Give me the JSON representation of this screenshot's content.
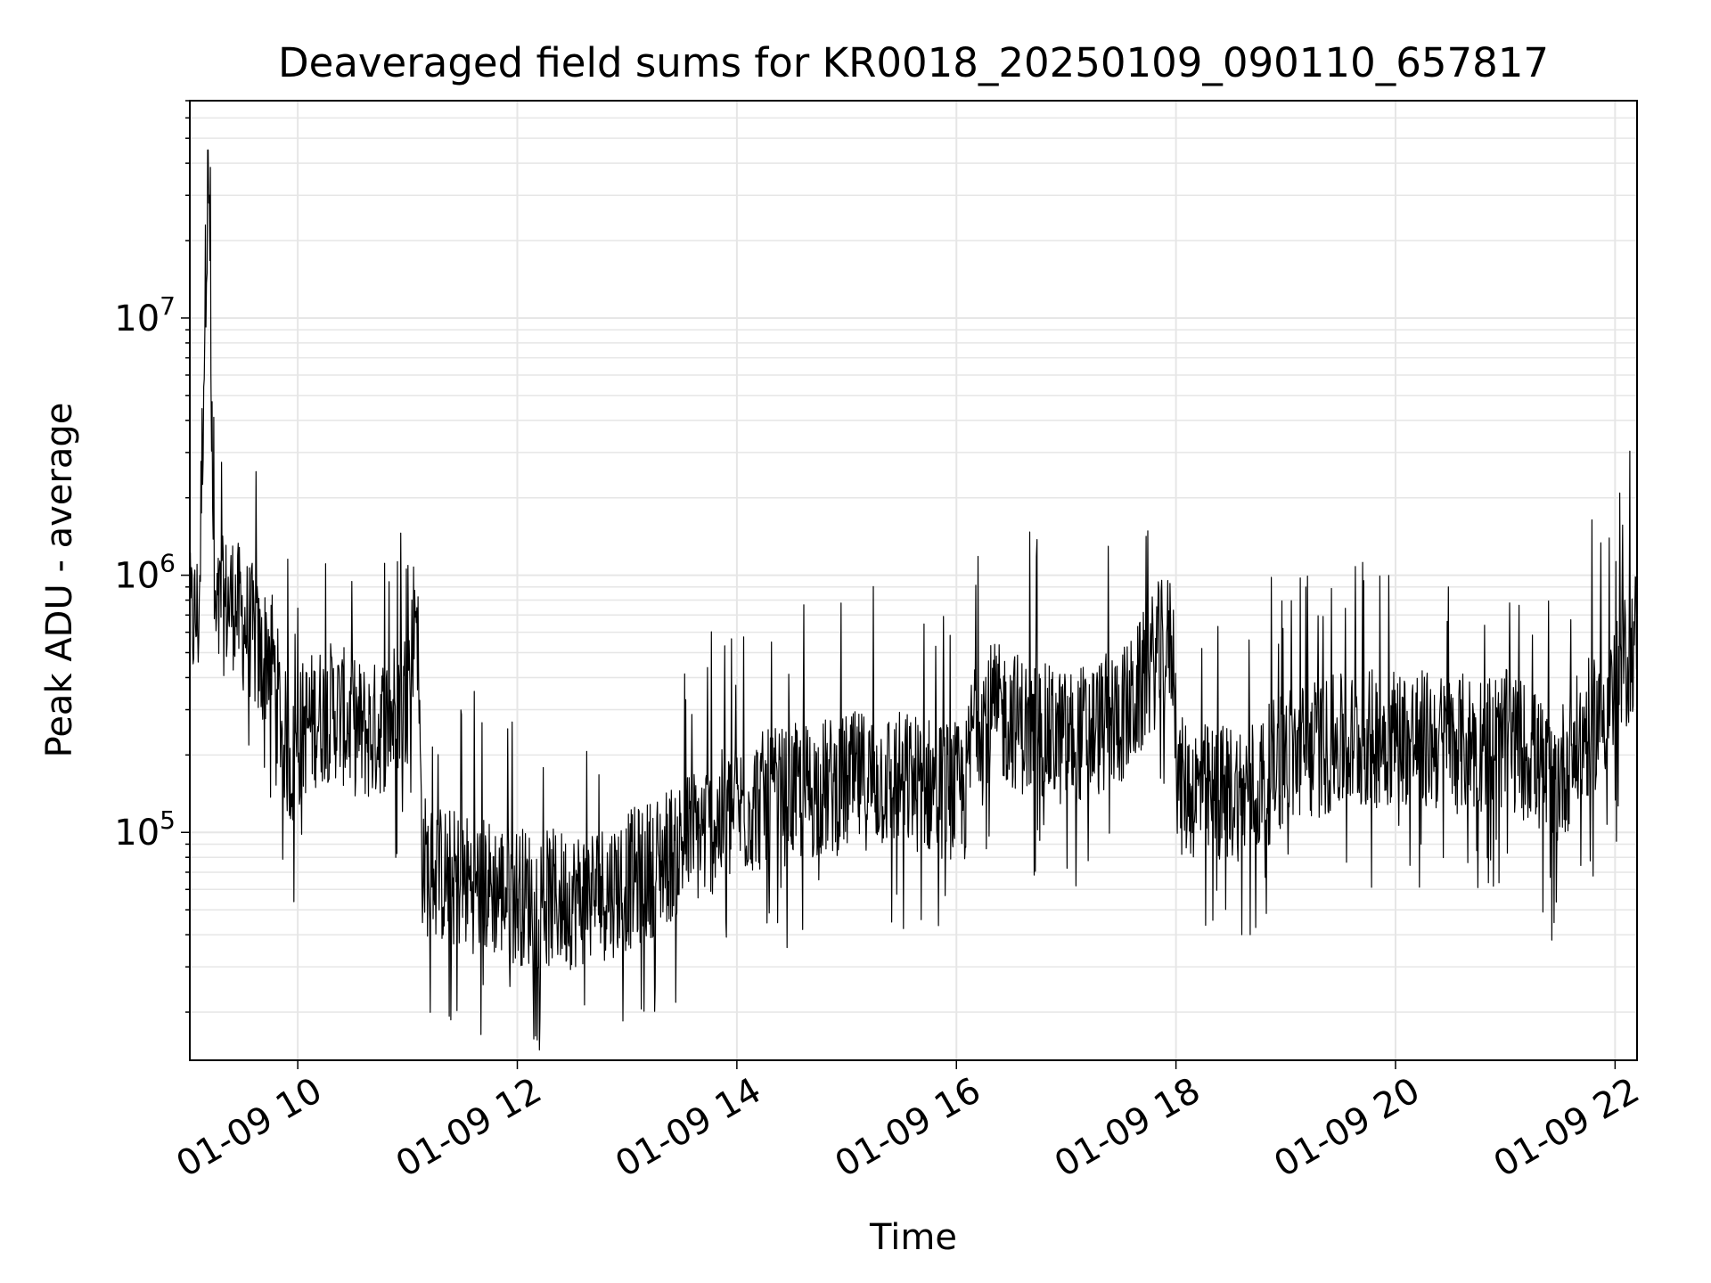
{
  "chart_data": {
    "type": "line",
    "title": "Deaveraged field sums for KR0018_20250109_090110_657817",
    "xlabel": "Time",
    "ylabel": "Peak ADU - average",
    "x_type": "datetime",
    "xlim": [
      "2025-01-09 09:01",
      "2025-01-09 22:12"
    ],
    "ylim": [
      13000,
      70000000
    ],
    "y_scale": "log",
    "grid": true,
    "grid_color": "#e6e6e6",
    "line_color": "#000000",
    "x_ticks": [
      {
        "t": "2025-01-09 10:00",
        "label": "01-09 10"
      },
      {
        "t": "2025-01-09 12:00",
        "label": "01-09 12"
      },
      {
        "t": "2025-01-09 14:00",
        "label": "01-09 14"
      },
      {
        "t": "2025-01-09 16:00",
        "label": "01-09 16"
      },
      {
        "t": "2025-01-09 18:00",
        "label": "01-09 18"
      },
      {
        "t": "2025-01-09 20:00",
        "label": "01-09 20"
      },
      {
        "t": "2025-01-09 22:00",
        "label": "01-09 22"
      }
    ],
    "y_ticks": [
      {
        "value": 100000,
        "base": "10",
        "exp": "5"
      },
      {
        "value": 1000000,
        "base": "10",
        "exp": "6"
      },
      {
        "value": 10000000,
        "base": "10",
        "exp": "7"
      }
    ],
    "series": [
      {
        "x": [
          "2025-01-09 09:01",
          "2025-01-09 09:06",
          "2025-01-09 09:11",
          "2025-01-09 09:14",
          "2025-01-09 09:15",
          "2025-01-09 09:18",
          "2025-01-09 09:25",
          "2025-01-09 09:30",
          "2025-01-09 09:35",
          "2025-01-09 09:40",
          "2025-01-09 09:45",
          "2025-01-09 09:50",
          "2025-01-09 09:55",
          "2025-01-09 09:58",
          "2025-01-09 10:02",
          "2025-01-09 10:10",
          "2025-01-09 10:20",
          "2025-01-09 10:30",
          "2025-01-09 10:40",
          "2025-01-09 10:50",
          "2025-01-09 11:00",
          "2025-01-09 11:05",
          "2025-01-09 11:08",
          "2025-01-09 11:12",
          "2025-01-09 11:30",
          "2025-01-09 11:50",
          "2025-01-09 12:10",
          "2025-01-09 12:30",
          "2025-01-09 12:50",
          "2025-01-09 13:10",
          "2025-01-09 13:30",
          "2025-01-09 13:50",
          "2025-01-09 14:10",
          "2025-01-09 14:30",
          "2025-01-09 14:50",
          "2025-01-09 15:10",
          "2025-01-09 15:30",
          "2025-01-09 15:50",
          "2025-01-09 16:05",
          "2025-01-09 16:10",
          "2025-01-09 16:30",
          "2025-01-09 16:40",
          "2025-01-09 17:00",
          "2025-01-09 17:20",
          "2025-01-09 17:35",
          "2025-01-09 17:50",
          "2025-01-09 17:58",
          "2025-01-09 18:02",
          "2025-01-09 18:20",
          "2025-01-09 18:45",
          "2025-01-09 19:00",
          "2025-01-09 19:30",
          "2025-01-09 20:00",
          "2025-01-09 20:30",
          "2025-01-09 21:00",
          "2025-01-09 21:15",
          "2025-01-09 21:25",
          "2025-01-09 21:45",
          "2025-01-09 22:00",
          "2025-01-09 22:12"
        ],
        "y": [
          650000,
          700000,
          45000000,
          900000,
          600000,
          750000,
          800000,
          650000,
          600000,
          450000,
          550000,
          300000,
          200000,
          180000,
          250000,
          280000,
          300000,
          260000,
          240000,
          280000,
          350000,
          900000,
          80000,
          70000,
          65000,
          60000,
          55000,
          55000,
          60000,
          70000,
          90000,
          110000,
          130000,
          140000,
          150000,
          160000,
          160000,
          150000,
          140000,
          300000,
          280000,
          250000,
          230000,
          260000,
          300000,
          500000,
          550000,
          150000,
          140000,
          150000,
          200000,
          220000,
          240000,
          220000,
          230000,
          200000,
          150000,
          250000,
          350000,
          600000
        ]
      }
    ]
  }
}
